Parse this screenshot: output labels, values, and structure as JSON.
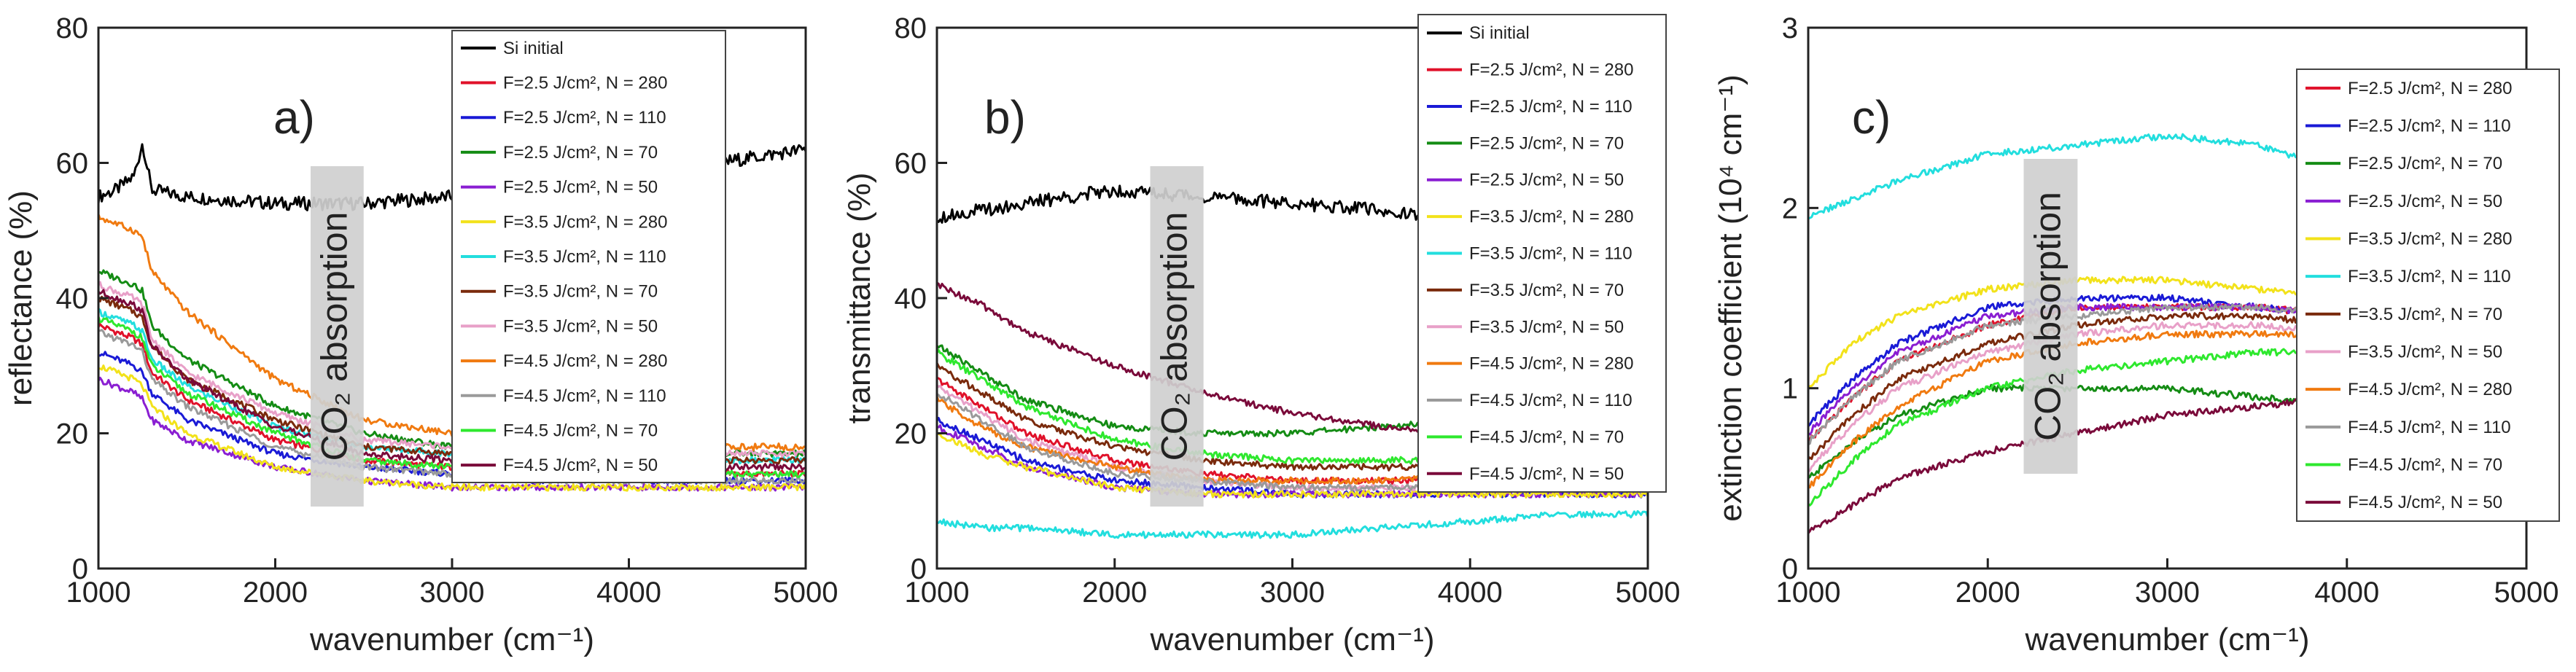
{
  "colors": {
    "Si initial": "#000000",
    "F=2.5 J/cm², N = 280": "#e0112a",
    "F=2.5 J/cm², N = 110": "#1a1ad6",
    "F=2.5 J/cm², N = 70": "#148c14",
    "F=2.5 J/cm², N = 50": "#8a1ed2",
    "F=3.5 J/cm², N = 280": "#f2e21a",
    "F=3.5 J/cm², N = 110": "#22dede",
    "F=3.5 J/cm², N = 70": "#7a2a0c",
    "F=3.5 J/cm², N = 50": "#e8a0c8",
    "F=4.5 J/cm², N = 280": "#f07a10",
    "F=4.5 J/cm², N = 110": "#9a9a9a",
    "F=4.5 J/cm², N = 70": "#2ee82e",
    "F=4.5 J/cm², N = 50": "#7a0a3a"
  },
  "chart_data": [
    {
      "type": "line",
      "panel_label": "a)",
      "xlabel": "wavenumber (cm⁻¹)",
      "ylabel": "reflectance (%)",
      "xlim": [
        1000,
        5000
      ],
      "ylim": [
        0,
        80
      ],
      "xticks": [
        1000,
        2000,
        3000,
        4000,
        5000
      ],
      "yticks": [
        0,
        20,
        40,
        60,
        80
      ],
      "legend_position": "top-right",
      "band": {
        "label": "CO₂ absorption",
        "x_from": 2200,
        "x_to": 2500
      },
      "x": [
        1000,
        1100,
        1200,
        1250,
        1300,
        1500,
        2000,
        2500,
        3000,
        3500,
        4000,
        4500,
        5000
      ],
      "series": [
        {
          "name": "Si initial",
          "values": [
            55,
            56,
            58,
            63,
            56,
            55,
            54,
            54,
            55,
            56,
            58,
            60,
            62
          ]
        },
        {
          "name": "F=2.5 J/cm², N = 280",
          "values": [
            36,
            35,
            34,
            33,
            29,
            25,
            19,
            16,
            15,
            14,
            14,
            14,
            14
          ]
        },
        {
          "name": "F=2.5 J/cm², N = 110",
          "values": [
            32,
            31,
            30,
            29,
            26,
            22,
            17,
            15,
            14,
            13,
            13,
            13,
            13
          ]
        },
        {
          "name": "F=2.5 J/cm², N = 70",
          "values": [
            44,
            43,
            42,
            41,
            36,
            31,
            24,
            20,
            18,
            17,
            17,
            17,
            17
          ]
        },
        {
          "name": "F=2.5 J/cm², N = 50",
          "values": [
            28,
            27,
            26,
            25,
            22,
            19,
            15,
            13,
            12,
            12,
            12,
            12,
            12
          ]
        },
        {
          "name": "F=3.5 J/cm², N = 280",
          "values": [
            30,
            29,
            28,
            27,
            24,
            20,
            15,
            13,
            12,
            12,
            12,
            12,
            12
          ]
        },
        {
          "name": "F=3.5 J/cm², N = 110",
          "values": [
            38,
            37,
            36,
            35,
            31,
            27,
            21,
            18,
            17,
            16,
            16,
            16,
            16
          ]
        },
        {
          "name": "F=3.5 J/cm², N = 70",
          "values": [
            40,
            39,
            38,
            37,
            33,
            28,
            22,
            18,
            17,
            16,
            16,
            16,
            16
          ]
        },
        {
          "name": "F=3.5 J/cm², N = 50",
          "values": [
            42,
            41,
            40,
            39,
            34,
            29,
            23,
            19,
            18,
            17,
            17,
            17,
            17
          ]
        },
        {
          "name": "F=4.5 J/cm², N = 280",
          "values": [
            52,
            51,
            50,
            49,
            44,
            38,
            28,
            22,
            20,
            18,
            18,
            18,
            18
          ]
        },
        {
          "name": "F=4.5 J/cm², N = 110",
          "values": [
            35,
            34,
            33,
            32,
            28,
            24,
            18,
            15,
            14,
            13,
            13,
            13,
            13
          ]
        },
        {
          "name": "F=4.5 J/cm², N = 70",
          "values": [
            37,
            36,
            35,
            34,
            30,
            26,
            20,
            16,
            15,
            14,
            14,
            14,
            14
          ]
        },
        {
          "name": "F=4.5 J/cm², N = 50",
          "values": [
            41,
            40,
            39,
            38,
            33,
            28,
            21,
            17,
            16,
            15,
            15,
            15,
            15
          ]
        }
      ]
    },
    {
      "type": "line",
      "panel_label": "b)",
      "xlabel": "wavenumber (cm⁻¹)",
      "ylabel": "transmittance (%)",
      "xlim": [
        1000,
        5000
      ],
      "ylim": [
        0,
        80
      ],
      "xticks": [
        1000,
        2000,
        3000,
        4000,
        5000
      ],
      "yticks": [
        0,
        20,
        40,
        60,
        80
      ],
      "legend_position": "top-right",
      "band": {
        "label": "CO₂ absorption",
        "x_from": 2200,
        "x_to": 2500
      },
      "x": [
        1000,
        1250,
        1500,
        2000,
        2500,
        3000,
        3500,
        4000,
        4500,
        5000
      ],
      "series": [
        {
          "name": "Si initial",
          "values": [
            52,
            53,
            54,
            56,
            55,
            54,
            53,
            51,
            50,
            50
          ]
        },
        {
          "name": "F=2.5 J/cm², N = 280",
          "values": [
            28,
            24,
            20,
            16,
            14,
            13,
            13,
            13,
            13,
            13
          ]
        },
        {
          "name": "F=2.5 J/cm², N = 110",
          "values": [
            22,
            19,
            16,
            13,
            12,
            11,
            11,
            11,
            11,
            11
          ]
        },
        {
          "name": "F=2.5 J/cm², N = 70",
          "values": [
            33,
            29,
            25,
            21,
            20,
            20,
            21,
            22,
            24,
            25
          ]
        },
        {
          "name": "F=2.5 J/cm², N = 50",
          "values": [
            21,
            18,
            15,
            12,
            11,
            11,
            11,
            11,
            11,
            11
          ]
        },
        {
          "name": "F=3.5 J/cm², N = 280",
          "values": [
            20,
            17,
            15,
            12,
            11,
            11,
            11,
            11,
            11,
            11
          ]
        },
        {
          "name": "F=3.5 J/cm², N = 110",
          "values": [
            7,
            6,
            6,
            5,
            5,
            5,
            6,
            7,
            8,
            8
          ]
        },
        {
          "name": "F=3.5 J/cm², N = 70",
          "values": [
            30,
            26,
            22,
            18,
            16,
            15,
            15,
            15,
            15,
            15
          ]
        },
        {
          "name": "F=3.5 J/cm², N = 50",
          "values": [
            27,
            23,
            19,
            15,
            13,
            12,
            12,
            12,
            12,
            12
          ]
        },
        {
          "name": "F=4.5 J/cm², N = 280",
          "values": [
            25,
            21,
            18,
            15,
            13,
            13,
            13,
            14,
            14,
            14
          ]
        },
        {
          "name": "F=4.5 J/cm², N = 110",
          "values": [
            26,
            22,
            18,
            14,
            13,
            12,
            12,
            12,
            12,
            12
          ]
        },
        {
          "name": "F=4.5 J/cm², N = 70",
          "values": [
            32,
            28,
            24,
            19,
            17,
            16,
            16,
            16,
            16,
            16
          ]
        },
        {
          "name": "F=4.5 J/cm², N = 50",
          "values": [
            42,
            39,
            35,
            30,
            26,
            23,
            21,
            20,
            19,
            19
          ]
        }
      ]
    },
    {
      "type": "line",
      "panel_label": "c)",
      "xlabel": "wavenumber (cm⁻¹)",
      "ylabel": "extinction coefficient (10⁴ cm⁻¹)",
      "xlim": [
        1000,
        5000
      ],
      "ylim": [
        0,
        3
      ],
      "xticks": [
        1000,
        2000,
        3000,
        4000,
        5000
      ],
      "yticks": [
        0,
        1,
        2,
        3
      ],
      "legend_position": "top-right",
      "band": {
        "label": "CO₂ absorption",
        "x_from": 2200,
        "x_to": 2500
      },
      "x": [
        1000,
        1250,
        1500,
        2000,
        2500,
        3000,
        3500,
        4000,
        4500,
        5000
      ],
      "series": [
        {
          "name": "F=2.5 J/cm², N = 280",
          "values": [
            0.7,
            0.95,
            1.15,
            1.35,
            1.45,
            1.45,
            1.45,
            1.4,
            1.35,
            1.3
          ]
        },
        {
          "name": "F=2.5 J/cm², N = 110",
          "values": [
            0.8,
            1.05,
            1.25,
            1.45,
            1.5,
            1.5,
            1.45,
            1.4,
            1.35,
            1.3
          ]
        },
        {
          "name": "F=2.5 J/cm², N = 70",
          "values": [
            0.5,
            0.7,
            0.85,
            1.0,
            1.0,
            1.0,
            0.95,
            0.9,
            0.8,
            0.7
          ]
        },
        {
          "name": "F=2.5 J/cm², N = 50",
          "values": [
            0.75,
            1.0,
            1.2,
            1.4,
            1.45,
            1.45,
            1.45,
            1.4,
            1.35,
            1.3
          ]
        },
        {
          "name": "F=3.5 J/cm², N = 280",
          "values": [
            1.0,
            1.25,
            1.4,
            1.55,
            1.6,
            1.6,
            1.55,
            1.5,
            1.45,
            1.4
          ]
        },
        {
          "name": "F=3.5 J/cm², N = 110",
          "values": [
            1.95,
            2.05,
            2.15,
            2.3,
            2.35,
            2.4,
            2.35,
            2.2,
            2.1,
            2.0
          ]
        },
        {
          "name": "F=3.5 J/cm², N = 70",
          "values": [
            0.6,
            0.85,
            1.05,
            1.25,
            1.35,
            1.4,
            1.4,
            1.35,
            1.3,
            1.25
          ]
        },
        {
          "name": "F=3.5 J/cm², N = 50",
          "values": [
            0.55,
            0.8,
            1.0,
            1.2,
            1.3,
            1.35,
            1.35,
            1.3,
            1.25,
            1.2
          ]
        },
        {
          "name": "F=4.5 J/cm², N = 280",
          "values": [
            0.45,
            0.7,
            0.9,
            1.15,
            1.25,
            1.3,
            1.3,
            1.3,
            1.25,
            1.2
          ]
        },
        {
          "name": "F=4.5 J/cm², N = 110",
          "values": [
            0.7,
            0.95,
            1.15,
            1.35,
            1.4,
            1.45,
            1.45,
            1.4,
            1.35,
            1.3
          ]
        },
        {
          "name": "F=4.5 J/cm², N = 70",
          "values": [
            0.35,
            0.6,
            0.8,
            1.0,
            1.1,
            1.15,
            1.2,
            1.2,
            1.2,
            1.15
          ]
        },
        {
          "name": "F=4.5 J/cm², N = 50",
          "values": [
            0.2,
            0.35,
            0.5,
            0.65,
            0.75,
            0.85,
            0.9,
            0.95,
            1.0,
            1.0
          ]
        }
      ]
    }
  ]
}
